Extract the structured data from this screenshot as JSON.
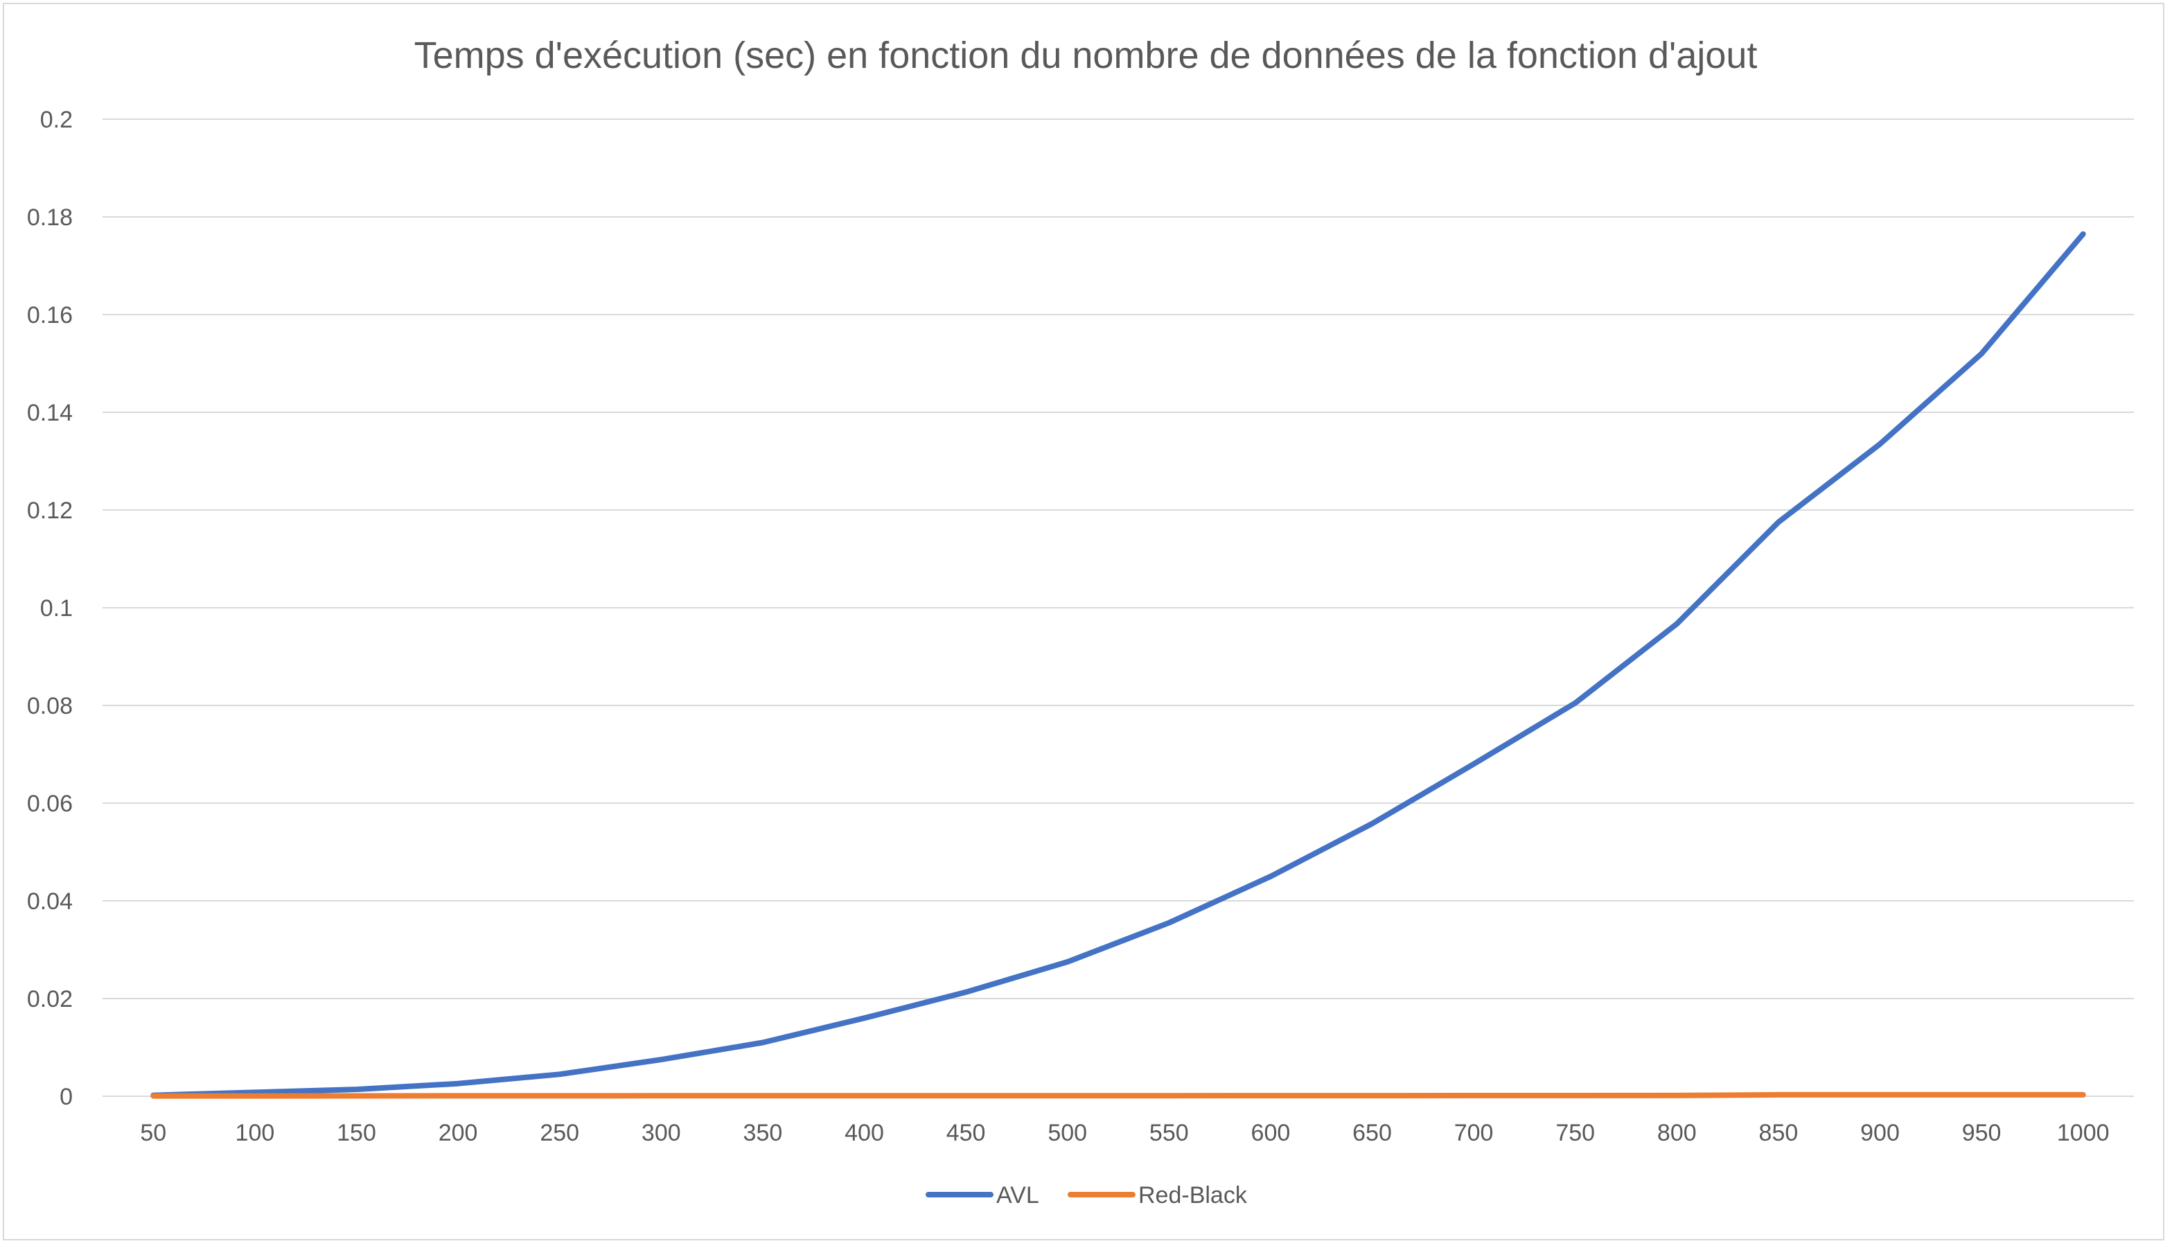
{
  "chart_data": {
    "type": "line",
    "title": "Temps d'exécution (sec) en fonction du nombre de données de la fonction d'ajout",
    "xlabel": "",
    "ylabel": "",
    "categories": [
      "50",
      "100",
      "150",
      "200",
      "250",
      "300",
      "350",
      "400",
      "450",
      "500",
      "550",
      "600",
      "650",
      "700",
      "750",
      "800",
      "850",
      "900",
      "950",
      "1000"
    ],
    "y_ticks": [
      "0",
      "0.02",
      "0.04",
      "0.06",
      "0.08",
      "0.1",
      "0.12",
      "0.14",
      "0.16",
      "0.18",
      "0.2"
    ],
    "ylim": [
      0,
      0.2
    ],
    "grid": true,
    "legend_position": "bottom",
    "series": [
      {
        "name": "AVL",
        "color": "#4472C4",
        "values": [
          0.0002,
          0.0008,
          0.0014,
          0.0026,
          0.0045,
          0.0075,
          0.011,
          0.016,
          0.0213,
          0.0275,
          0.0355,
          0.045,
          0.0558,
          0.068,
          0.0805,
          0.0967,
          0.1175,
          0.1335,
          0.152,
          0.1765
        ]
      },
      {
        "name": "Red-Black",
        "color": "#ED7D31",
        "values": [
          5e-05,
          6e-05,
          7e-05,
          8e-05,
          9e-05,
          0.0001,
          0.0001,
          0.00011,
          0.00011,
          0.00012,
          0.00012,
          0.00013,
          0.00013,
          0.00014,
          0.00014,
          0.00015,
          0.0003,
          0.0003,
          0.0003,
          0.0003
        ]
      }
    ]
  }
}
